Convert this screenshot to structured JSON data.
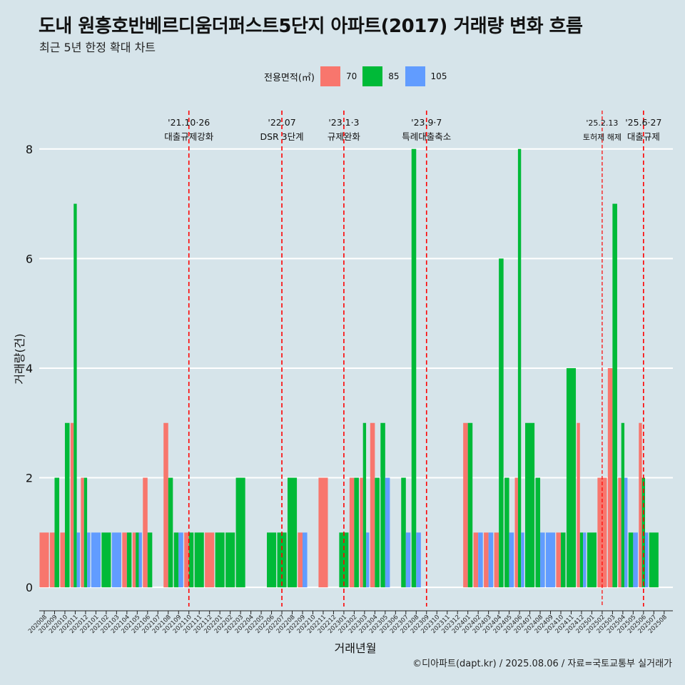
{
  "chart_data": {
    "type": "bar",
    "title": "도내 원흥호반베르디움더퍼스트5단지 아파트(2017) 거래량 변화 흐름",
    "subtitle": "최근 5년 한정 확대 차트",
    "xlabel": "거래년월",
    "ylabel": "거래량(건)",
    "caption": "©디아파트(dapt.kr) / 2025.08.06 / 자료=국토교통부 실거래가",
    "legend_title": "전용면적(㎡)",
    "legend_position": "top",
    "grid": true,
    "ylim": [
      -0.35,
      8.7
    ],
    "yticks": [
      0,
      2,
      4,
      6,
      8
    ],
    "series": [
      {
        "name": "70",
        "color": "#F8766D"
      },
      {
        "name": "85",
        "color": "#00BA38"
      },
      {
        "name": "105",
        "color": "#619CFF"
      }
    ],
    "categories": [
      "202008",
      "202009",
      "202010",
      "202011",
      "202012",
      "202101",
      "202102",
      "202103",
      "202104",
      "202105",
      "202106",
      "202107",
      "202108",
      "202109",
      "202110",
      "202111",
      "202112",
      "202201",
      "202202",
      "202203",
      "202204",
      "202205",
      "202206",
      "202207",
      "202208",
      "202209",
      "202210",
      "202211",
      "202212",
      "202301",
      "202302",
      "202303",
      "202304",
      "202305",
      "202306",
      "202307",
      "202308",
      "202309",
      "202310",
      "202311",
      "202312",
      "202401",
      "202402",
      "202403",
      "202404",
      "202405",
      "202406",
      "202407",
      "202408",
      "202409",
      "202410",
      "202411",
      "202412",
      "202501",
      "202502",
      "202503",
      "202504",
      "202505",
      "202506",
      "202507",
      "202508"
    ],
    "bars": [
      {
        "x": "202008",
        "g": [
          [
            0,
            1
          ]
        ]
      },
      {
        "x": "202009",
        "g": [
          [
            0,
            1
          ],
          [
            1,
            2
          ]
        ]
      },
      {
        "x": "202010",
        "g": [
          [
            0,
            1
          ],
          [
            1,
            3
          ]
        ]
      },
      {
        "x": "202011",
        "g": [
          [
            0,
            3
          ],
          [
            1,
            7
          ],
          [
            2,
            1
          ]
        ]
      },
      {
        "x": "202012",
        "g": [
          [
            0,
            2
          ],
          [
            1,
            2
          ],
          [
            2,
            1
          ]
        ]
      },
      {
        "x": "202101",
        "g": [
          [
            2,
            1
          ]
        ]
      },
      {
        "x": "202102",
        "g": [
          [
            1,
            1
          ]
        ]
      },
      {
        "x": "202103",
        "g": [
          [
            2,
            1
          ]
        ]
      },
      {
        "x": "202104",
        "g": [
          [
            0,
            1
          ],
          [
            1,
            1
          ]
        ]
      },
      {
        "x": "202105",
        "g": [
          [
            0,
            1
          ],
          [
            1,
            1
          ],
          [
            2,
            1
          ]
        ]
      },
      {
        "x": "202106",
        "g": [
          [
            0,
            2
          ],
          [
            1,
            1
          ]
        ]
      },
      {
        "x": "202108",
        "g": [
          [
            0,
            3
          ],
          [
            1,
            2
          ]
        ]
      },
      {
        "x": "202109",
        "g": [
          [
            1,
            1
          ],
          [
            2,
            1
          ]
        ]
      },
      {
        "x": "202110",
        "g": [
          [
            0,
            1
          ],
          [
            1,
            1
          ]
        ]
      },
      {
        "x": "202111",
        "g": [
          [
            1,
            1
          ]
        ]
      },
      {
        "x": "202112",
        "g": [
          [
            0,
            1
          ]
        ]
      },
      {
        "x": "202201",
        "g": [
          [
            1,
            1
          ]
        ]
      },
      {
        "x": "202202",
        "g": [
          [
            1,
            1
          ]
        ]
      },
      {
        "x": "202203",
        "g": [
          [
            1,
            2
          ]
        ]
      },
      {
        "x": "202206",
        "g": [
          [
            1,
            1
          ]
        ]
      },
      {
        "x": "202207",
        "g": [
          [
            1,
            1
          ]
        ]
      },
      {
        "x": "202208",
        "g": [
          [
            1,
            2
          ]
        ]
      },
      {
        "x": "202209",
        "g": [
          [
            0,
            1
          ],
          [
            2,
            1
          ]
        ]
      },
      {
        "x": "202211",
        "g": [
          [
            0,
            2
          ]
        ]
      },
      {
        "x": "202301",
        "g": [
          [
            1,
            1
          ]
        ]
      },
      {
        "x": "202302",
        "g": [
          [
            0,
            2
          ],
          [
            1,
            2
          ]
        ]
      },
      {
        "x": "202303",
        "g": [
          [
            0,
            2
          ],
          [
            1,
            3
          ],
          [
            2,
            1
          ]
        ]
      },
      {
        "x": "202304",
        "g": [
          [
            0,
            3
          ],
          [
            1,
            2
          ]
        ]
      },
      {
        "x": "202305",
        "g": [
          [
            1,
            3
          ],
          [
            2,
            2
          ]
        ]
      },
      {
        "x": "202307",
        "g": [
          [
            1,
            2
          ],
          [
            2,
            1
          ]
        ]
      },
      {
        "x": "202308",
        "g": [
          [
            1,
            8
          ],
          [
            2,
            1
          ]
        ]
      },
      {
        "x": "202401",
        "g": [
          [
            0,
            3
          ],
          [
            1,
            3
          ]
        ]
      },
      {
        "x": "202402",
        "g": [
          [
            0,
            1
          ],
          [
            2,
            1
          ]
        ]
      },
      {
        "x": "202403",
        "g": [
          [
            0,
            1
          ],
          [
            2,
            1
          ]
        ]
      },
      {
        "x": "202404",
        "g": [
          [
            0,
            1
          ],
          [
            1,
            6
          ]
        ]
      },
      {
        "x": "202405",
        "g": [
          [
            1,
            2
          ],
          [
            2,
            1
          ]
        ]
      },
      {
        "x": "202406",
        "g": [
          [
            0,
            2
          ],
          [
            1,
            8
          ],
          [
            2,
            1
          ]
        ]
      },
      {
        "x": "202407",
        "g": [
          [
            1,
            3
          ]
        ]
      },
      {
        "x": "202408",
        "g": [
          [
            1,
            2
          ],
          [
            2,
            1
          ]
        ]
      },
      {
        "x": "202409",
        "g": [
          [
            2,
            1
          ]
        ]
      },
      {
        "x": "202410",
        "g": [
          [
            0,
            1
          ],
          [
            1,
            1
          ]
        ]
      },
      {
        "x": "202411",
        "g": [
          [
            1,
            4
          ]
        ]
      },
      {
        "x": "202412",
        "g": [
          [
            0,
            3
          ],
          [
            1,
            1
          ],
          [
            2,
            1
          ]
        ]
      },
      {
        "x": "202501",
        "g": [
          [
            1,
            1
          ]
        ]
      },
      {
        "x": "202502",
        "g": [
          [
            0,
            2
          ]
        ]
      },
      {
        "x": "202503",
        "g": [
          [
            0,
            4
          ],
          [
            1,
            7
          ]
        ]
      },
      {
        "x": "202504",
        "g": [
          [
            0,
            2
          ],
          [
            1,
            3
          ],
          [
            2,
            2
          ]
        ]
      },
      {
        "x": "202505",
        "g": [
          [
            1,
            1
          ],
          [
            2,
            1
          ]
        ]
      },
      {
        "x": "202506",
        "g": [
          [
            0,
            3
          ],
          [
            1,
            2
          ],
          [
            2,
            1
          ]
        ]
      },
      {
        "x": "202507",
        "g": [
          [
            1,
            1
          ]
        ]
      }
    ],
    "events": [
      {
        "x": "202110",
        "label1": "'21.10·26",
        "label2": "대출규제강화",
        "dash": "long"
      },
      {
        "x": "202207",
        "label1": "'22.07",
        "label2": "DSR 3단계",
        "dash": "long"
      },
      {
        "x": "202301",
        "label1": "'23.1·3",
        "label2": "규제완화",
        "dash": "long"
      },
      {
        "x": "202309",
        "label1": "'23.9·7",
        "label2": "특례대출축소",
        "dash": "long"
      },
      {
        "x": "202502",
        "label1": "'25.2.13",
        "label2": "토허제 해제",
        "dash": "short"
      },
      {
        "x": "202506",
        "label1": "'25.6·27",
        "label2": "대출규제",
        "dash": "long"
      }
    ]
  }
}
